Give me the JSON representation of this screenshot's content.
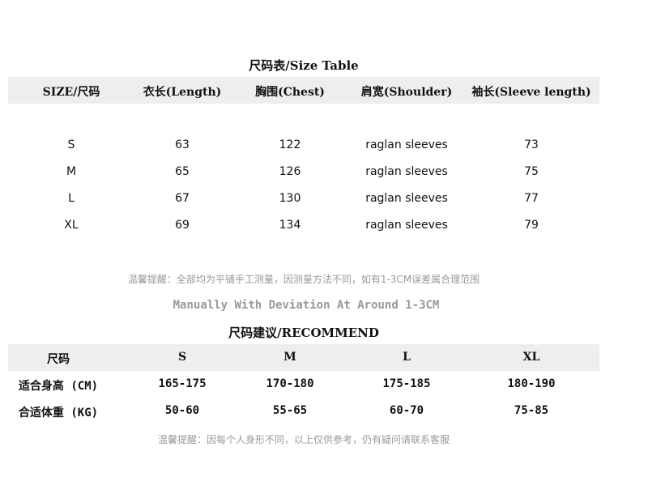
{
  "size_table": {
    "title": "尺码表/Size Table",
    "headers": [
      "SIZE/尺码",
      "衣长(Length)",
      "胸围(Chest)",
      "肩宽(Shoulder)",
      "袖长(Sleeve length)"
    ],
    "rows": [
      [
        "S",
        "63",
        "122",
        "raglan sleeves",
        "73"
      ],
      [
        "M",
        "65",
        "126",
        "raglan sleeves",
        "75"
      ],
      [
        "L",
        "67",
        "130",
        "raglan sleeves",
        "77"
      ],
      [
        "XL",
        "69",
        "134",
        "raglan sleeves",
        "79"
      ]
    ]
  },
  "note_cn": "温馨提醒：全部均为平铺手工测量，因测量方法不同，如有1-3CM误差属合理范围",
  "note_en": "Manually With Deviation At Around 1-3CM",
  "recommend": {
    "title": "尺码建议/RECOMMEND",
    "headers": [
      "尺码",
      "S",
      "M",
      "L",
      "XL"
    ],
    "rows": [
      [
        "适合身高 (CM)",
        "165-175",
        "170-180",
        "175-185",
        "180-190"
      ],
      [
        "合适体重 (KG)",
        "50-60",
        "55-65",
        "60-70",
        "75-85"
      ]
    ]
  },
  "note_bottom": "温馨提醒：因每个人身形不同，以上仅供参考，仍有疑问请联系客服"
}
